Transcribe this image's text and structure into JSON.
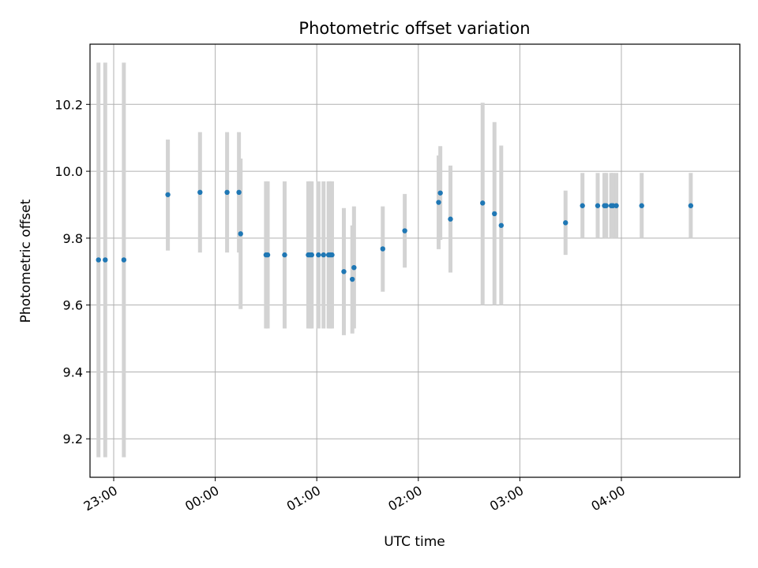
{
  "chart_data": {
    "type": "scatter",
    "title": "Photometric offset variation",
    "xlabel": "UTC time",
    "ylabel": "Photometric offset",
    "x_unit": "UTC time of day (HH:MM), night crossing midnight",
    "xlim": [
      "22:46",
      "05:10"
    ],
    "ylim": [
      9.085,
      10.38
    ],
    "grid": true,
    "x_ticks": [
      "23:00",
      "00:00",
      "01:00",
      "02:00",
      "03:00",
      "04:00"
    ],
    "y_ticks": [
      "9.2",
      "9.4",
      "9.6",
      "9.8",
      "10.0",
      "10.2"
    ],
    "point_color": "#1f77b4",
    "errorbar_color": "#d3d3d3",
    "points": [
      {
        "t": "22:51",
        "y": 9.735,
        "lo": 9.145,
        "hi": 10.325
      },
      {
        "t": "22:55",
        "y": 9.735,
        "lo": 9.145,
        "hi": 10.325
      },
      {
        "t": "23:06",
        "y": 9.735,
        "lo": 9.145,
        "hi": 10.325
      },
      {
        "t": "23:32",
        "y": 9.93,
        "lo": 9.763,
        "hi": 10.095
      },
      {
        "t": "23:51",
        "y": 9.937,
        "lo": 9.757,
        "hi": 10.117
      },
      {
        "t": "00:07",
        "y": 9.937,
        "lo": 9.757,
        "hi": 10.117
      },
      {
        "t": "00:14",
        "y": 9.937,
        "lo": 9.757,
        "hi": 10.117
      },
      {
        "t": "00:15",
        "y": 9.813,
        "lo": 9.588,
        "hi": 10.038
      },
      {
        "t": "00:30",
        "y": 9.75,
        "lo": 9.53,
        "hi": 9.97
      },
      {
        "t": "00:31",
        "y": 9.75,
        "lo": 9.53,
        "hi": 9.97
      },
      {
        "t": "00:41",
        "y": 9.75,
        "lo": 9.53,
        "hi": 9.97
      },
      {
        "t": "00:55",
        "y": 9.75,
        "lo": 9.53,
        "hi": 9.97
      },
      {
        "t": "00:56",
        "y": 9.75,
        "lo": 9.53,
        "hi": 9.97
      },
      {
        "t": "00:57",
        "y": 9.75,
        "lo": 9.53,
        "hi": 9.97
      },
      {
        "t": "01:01",
        "y": 9.75,
        "lo": 9.53,
        "hi": 9.97
      },
      {
        "t": "01:04",
        "y": 9.75,
        "lo": 9.53,
        "hi": 9.97
      },
      {
        "t": "01:07",
        "y": 9.75,
        "lo": 9.53,
        "hi": 9.97
      },
      {
        "t": "01:08",
        "y": 9.75,
        "lo": 9.53,
        "hi": 9.97
      },
      {
        "t": "01:09",
        "y": 9.75,
        "lo": 9.53,
        "hi": 9.97
      },
      {
        "t": "01:16",
        "y": 9.7,
        "lo": 9.51,
        "hi": 9.89
      },
      {
        "t": "01:21",
        "y": 9.677,
        "lo": 9.515,
        "hi": 9.838
      },
      {
        "t": "01:22",
        "y": 9.712,
        "lo": 9.53,
        "hi": 9.895
      },
      {
        "t": "01:39",
        "y": 9.768,
        "lo": 9.64,
        "hi": 9.895
      },
      {
        "t": "01:52",
        "y": 9.822,
        "lo": 9.712,
        "hi": 9.932
      },
      {
        "t": "02:12",
        "y": 9.907,
        "lo": 9.767,
        "hi": 10.047
      },
      {
        "t": "02:13",
        "y": 9.935,
        "lo": 9.795,
        "hi": 10.075
      },
      {
        "t": "02:19",
        "y": 9.857,
        "lo": 9.697,
        "hi": 10.017
      },
      {
        "t": "02:38",
        "y": 9.905,
        "lo": 9.6,
        "hi": 10.205
      },
      {
        "t": "02:45",
        "y": 9.873,
        "lo": 9.6,
        "hi": 10.147
      },
      {
        "t": "02:49",
        "y": 9.838,
        "lo": 9.6,
        "hi": 10.077
      },
      {
        "t": "03:27",
        "y": 9.846,
        "lo": 9.75,
        "hi": 9.942
      },
      {
        "t": "03:37",
        "y": 9.897,
        "lo": 9.8,
        "hi": 9.995
      },
      {
        "t": "03:46",
        "y": 9.897,
        "lo": 9.8,
        "hi": 9.995
      },
      {
        "t": "03:50",
        "y": 9.897,
        "lo": 9.8,
        "hi": 9.995
      },
      {
        "t": "03:51",
        "y": 9.897,
        "lo": 9.8,
        "hi": 9.995
      },
      {
        "t": "03:54",
        "y": 9.897,
        "lo": 9.8,
        "hi": 9.995
      },
      {
        "t": "03:55",
        "y": 9.897,
        "lo": 9.8,
        "hi": 9.995
      },
      {
        "t": "03:57",
        "y": 9.897,
        "lo": 9.8,
        "hi": 9.995
      },
      {
        "t": "04:12",
        "y": 9.897,
        "lo": 9.8,
        "hi": 9.995
      },
      {
        "t": "04:41",
        "y": 9.897,
        "lo": 9.8,
        "hi": 9.995
      }
    ]
  }
}
